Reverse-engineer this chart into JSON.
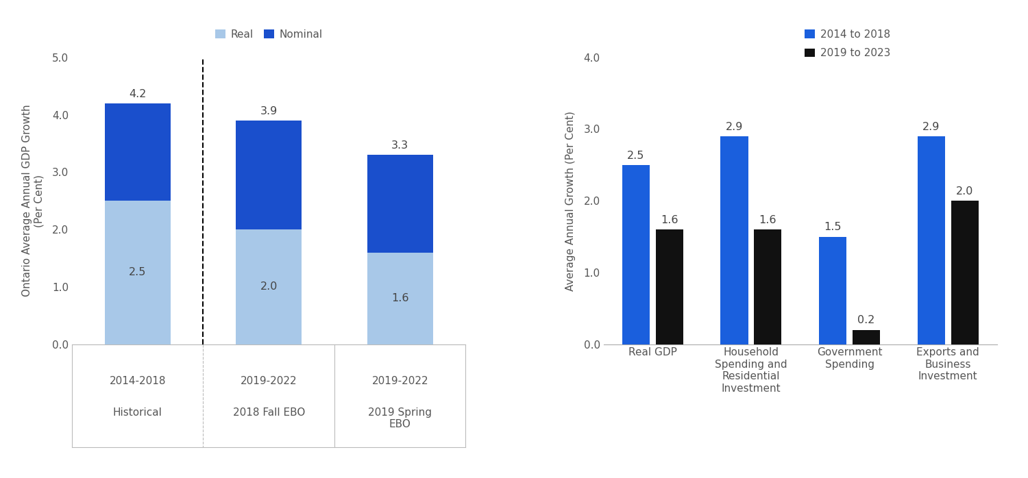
{
  "left_chart": {
    "ylabel": "Ontario Average Annual GDP Growth\n(Per Cent)",
    "ylim": [
      0.0,
      5.0
    ],
    "yticks": [
      0.0,
      1.0,
      2.0,
      3.0,
      4.0,
      5.0
    ],
    "bars": [
      {
        "real": 2.5,
        "nominal": 1.7,
        "total": 4.2
      },
      {
        "real": 2.0,
        "nominal": 1.9,
        "total": 3.9
      },
      {
        "real": 1.6,
        "nominal": 1.7,
        "total": 3.3
      }
    ],
    "tick_line1": [
      "2014-2018",
      "2019-2022",
      "2019-2022"
    ],
    "tick_line2": [
      "Historical",
      "2018 Fall EBO",
      "2019 Spring\nEBO"
    ],
    "color_real": "#a8c8e8",
    "color_nominal": "#1a4fcc",
    "legend_labels": [
      "Real",
      "Nominal"
    ]
  },
  "right_chart": {
    "ylabel": "Average Annual Growth (Per Cent)",
    "ylim": [
      0.0,
      4.0
    ],
    "yticks": [
      0.0,
      1.0,
      2.0,
      3.0,
      4.0
    ],
    "categories": [
      "Real GDP",
      "Household\nSpending and\nResidential\nInvestment",
      "Government\nSpending",
      "Exports and\nBusiness\nInvestment"
    ],
    "values_2014": [
      2.5,
      2.9,
      1.5,
      2.9
    ],
    "values_2019": [
      1.6,
      1.6,
      0.2,
      2.0
    ],
    "color_2014": "#1a5fdd",
    "color_2019": "#111111",
    "legend_labels": [
      "2014 to 2018",
      "2019 to 2023"
    ]
  },
  "background_color": "#ffffff",
  "font_color": "#555555",
  "label_fontsize": 11,
  "tick_fontsize": 11,
  "annotation_fontsize": 11.5
}
